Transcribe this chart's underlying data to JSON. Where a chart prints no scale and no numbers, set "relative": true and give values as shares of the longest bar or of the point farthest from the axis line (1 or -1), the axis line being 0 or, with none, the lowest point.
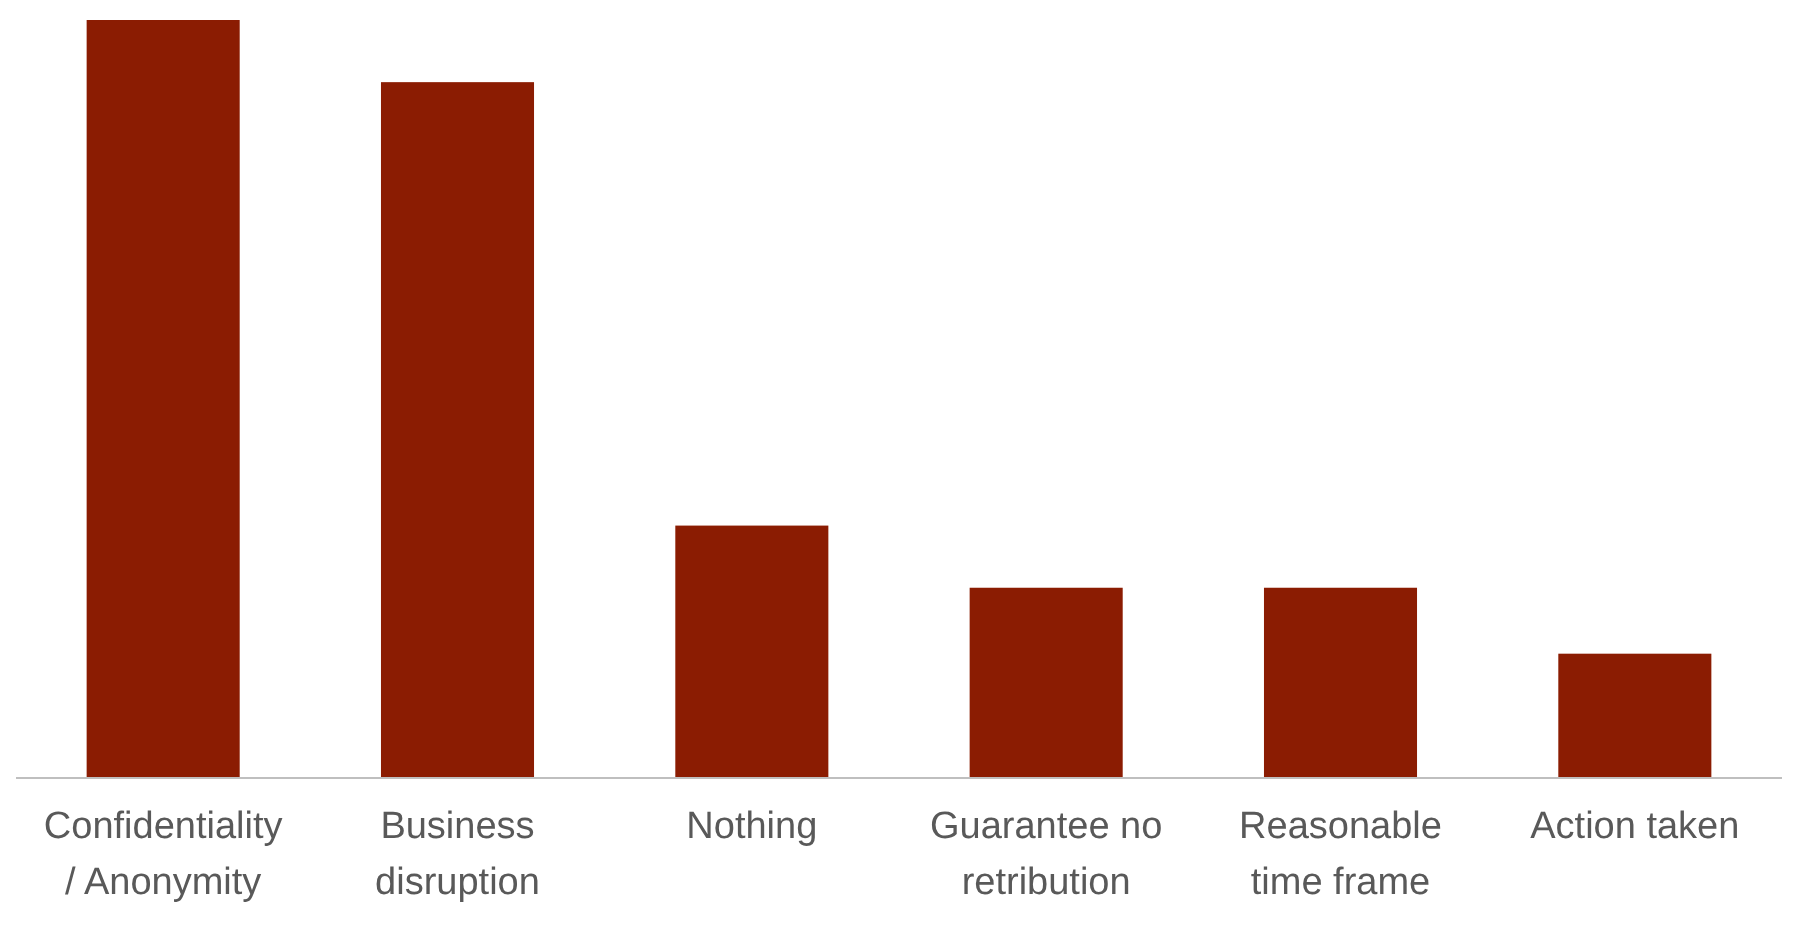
{
  "chart_data": {
    "type": "bar",
    "relative": true,
    "categories": [
      "Confidentiality / Anonymity",
      "Business disruption",
      "Nothing",
      "Guarantee no retribution",
      "Reasonable time frame",
      "Action taken"
    ],
    "values": [
      1,
      0.918,
      0.333,
      0.251,
      0.251,
      0.164
    ],
    "color": "#8b1c02"
  }
}
